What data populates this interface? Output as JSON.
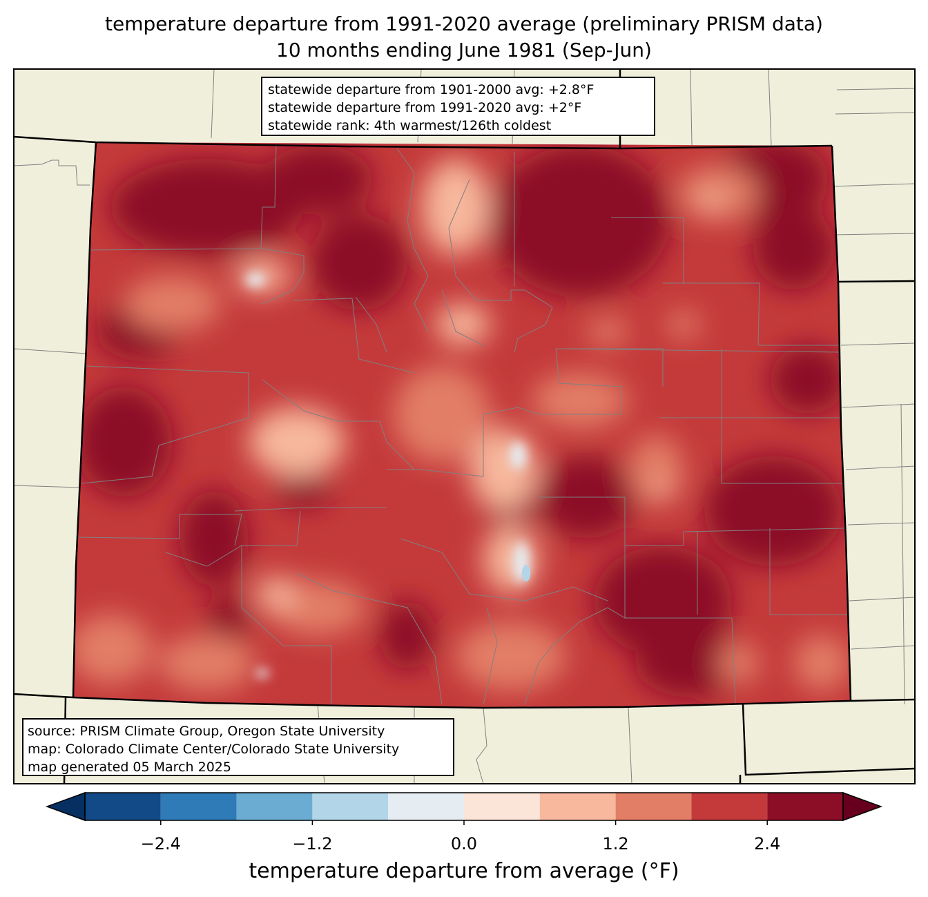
{
  "title": {
    "line1": "temperature departure from 1991-2020 average (preliminary PRISM data)",
    "line2": "10 months ending June 1981 (Sep-Jun)"
  },
  "stats": {
    "line1": "statewide departure from 1901-2000 avg: +2.8°F",
    "line2": "statewide departure from 1991-2020 avg: +2°F",
    "line3": "statewide rank: 4th warmest/126th coldest"
  },
  "source": {
    "line1": "source: PRISM Climate Group, Oregon State University",
    "line2": "map: Colorado Climate Center/Colorado State University",
    "line3": "map generated 05 March 2025"
  },
  "colorbar": {
    "label": "temperature departure from average (°F)",
    "ticks": [
      "−2.4",
      "−1.2",
      "0.0",
      "1.2",
      "2.4"
    ],
    "tick_values": [
      -2.4,
      -1.2,
      0.0,
      1.2,
      2.4
    ],
    "range": [
      -3.0,
      3.0
    ],
    "bins": [
      -3.0,
      -2.4,
      -1.8,
      -1.2,
      -0.6,
      0.0,
      0.6,
      1.2,
      1.8,
      2.4,
      3.0
    ],
    "colors": [
      "#124a87",
      "#2f7bb8",
      "#6badd2",
      "#b2d5e8",
      "#e5edf3",
      "#fbe4d8",
      "#f7b89d",
      "#e27e66",
      "#c43a3b",
      "#8c0d26"
    ],
    "under_color": "#053061",
    "over_color": "#67001f"
  },
  "colors": {
    "land": "#efefdc",
    "county_lines": "#808080",
    "state_lines": "#000000"
  }
}
